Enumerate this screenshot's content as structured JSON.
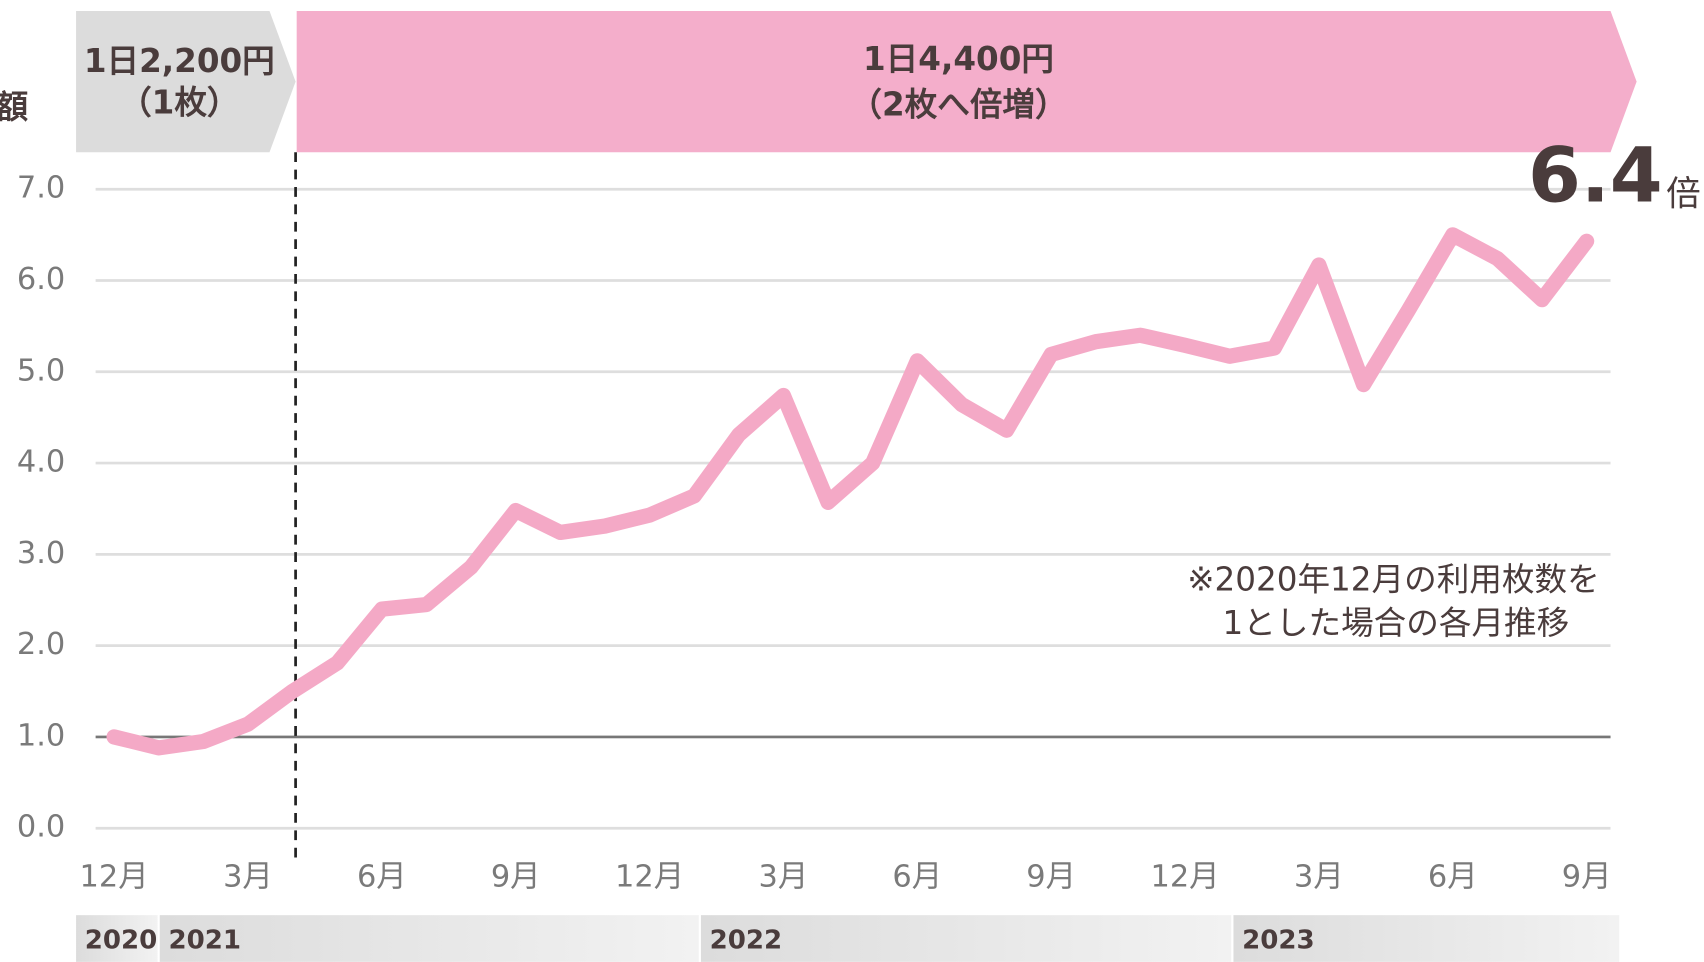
{
  "chart_data": {
    "type": "line",
    "y_label": "額",
    "periods": [
      {
        "line1": "1日2,200円",
        "line2": "（1枚）"
      },
      {
        "line1": "1日4,400円",
        "line2": "（2枚へ倍増）"
      }
    ],
    "annotation": [
      "※2020年12月の利用枚数を",
      "1とした場合の各月推移"
    ],
    "highlight": {
      "value": "6.4",
      "unit": "倍"
    },
    "years": [
      "2020",
      "2021",
      "2022",
      "2023"
    ],
    "categories": [
      "12月",
      null,
      null,
      "3月",
      null,
      null,
      "6月",
      null,
      null,
      "9月",
      null,
      null,
      "12月",
      null,
      null,
      "3月",
      null,
      null,
      "6月",
      null,
      null,
      "9月",
      null,
      null,
      "12月",
      null,
      null,
      "3月",
      null,
      null,
      "6月",
      null,
      null,
      "9月"
    ],
    "values": [
      1.0,
      0.88,
      0.95,
      1.14,
      1.5,
      1.81,
      2.4,
      2.45,
      2.86,
      3.48,
      3.24,
      3.31,
      3.43,
      3.64,
      4.31,
      4.74,
      3.57,
      4.0,
      5.12,
      4.64,
      4.36,
      5.19,
      5.33,
      5.4,
      5.29,
      5.17,
      5.26,
      6.17,
      4.86,
      5.67,
      6.5,
      6.24,
      5.79,
      6.43
    ],
    "color": "#f4a9c6",
    "reference_line": 1,
    "ylim": [
      0,
      7
    ],
    "yticks": [
      {
        "value": 0,
        "label": "0.0"
      },
      {
        "value": 1,
        "label": "1.0"
      },
      {
        "value": 2,
        "label": "2.0"
      },
      {
        "value": 3,
        "label": "3.0"
      },
      {
        "value": 4,
        "label": "4.0"
      },
      {
        "value": 5,
        "label": "5.0"
      },
      {
        "value": 6,
        "label": "6.0"
      },
      {
        "value": 7,
        "label": "7.0"
      }
    ],
    "grid": true
  }
}
